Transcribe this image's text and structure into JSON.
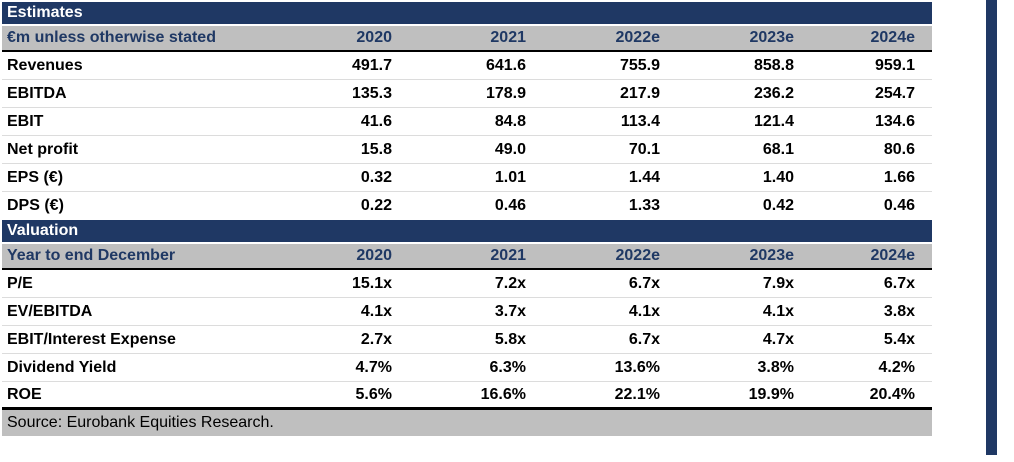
{
  "colors": {
    "navy": "#1F3864",
    "header_gray": "#BFBFBF"
  },
  "tables": [
    {
      "section_title": "Estimates",
      "header": [
        "€m unless otherwise stated",
        "2020",
        "2021",
        "2022e",
        "2023e",
        "2024e"
      ],
      "rows": [
        [
          "Revenues",
          "491.7",
          "641.6",
          "755.9",
          "858.8",
          "959.1"
        ],
        [
          "EBITDA",
          "135.3",
          "178.9",
          "217.9",
          "236.2",
          "254.7"
        ],
        [
          "EBIT",
          "41.6",
          "84.8",
          "113.4",
          "121.4",
          "134.6"
        ],
        [
          "Net profit",
          "15.8",
          "49.0",
          "70.1",
          "68.1",
          "80.6"
        ],
        [
          "EPS (€)",
          "0.32",
          "1.01",
          "1.44",
          "1.40",
          "1.66"
        ],
        [
          "DPS (€)",
          "0.22",
          "0.46",
          "1.33",
          "0.42",
          "0.46"
        ]
      ]
    },
    {
      "section_title": "Valuation",
      "header": [
        "Year to end December",
        "2020",
        "2021",
        "2022e",
        "2023e",
        "2024e"
      ],
      "rows": [
        [
          "P/E",
          "15.1x",
          "7.2x",
          "6.7x",
          "7.9x",
          "6.7x"
        ],
        [
          "EV/EBITDA",
          "4.1x",
          "3.7x",
          "4.1x",
          "4.1x",
          "3.8x"
        ],
        [
          "EBIT/Interest Expense",
          "2.7x",
          "5.8x",
          "6.7x",
          "4.7x",
          "5.4x"
        ],
        [
          "Dividend Yield",
          "4.7%",
          "6.3%",
          "13.6%",
          "3.8%",
          "4.2%"
        ],
        [
          "ROE",
          "5.6%",
          "16.6%",
          "22.1%",
          "19.9%",
          "20.4%"
        ]
      ]
    }
  ],
  "source": "Source: Eurobank Equities Research."
}
